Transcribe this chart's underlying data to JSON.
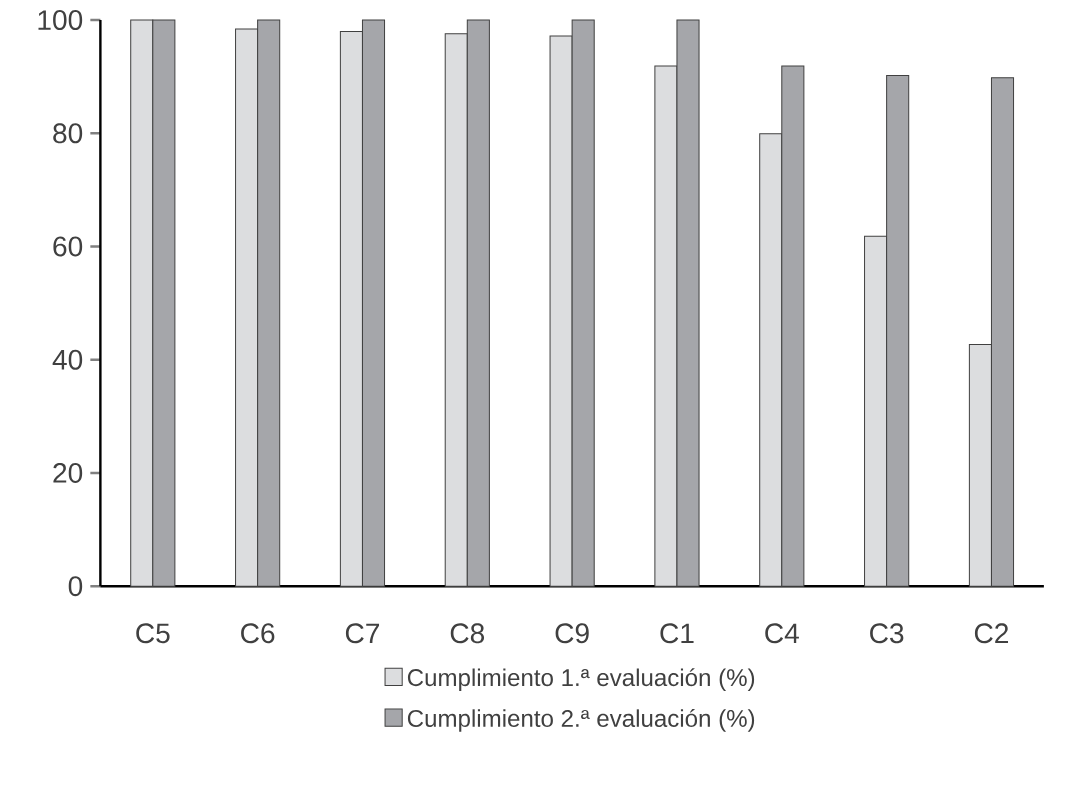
{
  "chart_data": {
    "type": "bar",
    "categories": [
      "C5",
      "C6",
      "C7",
      "C8",
      "C9",
      "C1",
      "C4",
      "C3",
      "C2"
    ],
    "series": [
      {
        "name": "Cumplimiento 1.ª evaluación (%)",
        "color": "#dcdddf",
        "values": [
          100,
          98.4,
          98,
          97.6,
          97.2,
          91.9,
          79.9,
          61.8,
          42.7
        ]
      },
      {
        "name": "Cumplimiento 2.ª evaluación (%)",
        "color": "#a5a6aa",
        "values": [
          100,
          100,
          100,
          100,
          100,
          100,
          91.9,
          90.2,
          89.8
        ]
      }
    ],
    "ylim": [
      0,
      100
    ],
    "yticks": [
      0,
      20,
      40,
      60,
      80,
      100
    ],
    "grid": false,
    "legend": "bottom"
  }
}
